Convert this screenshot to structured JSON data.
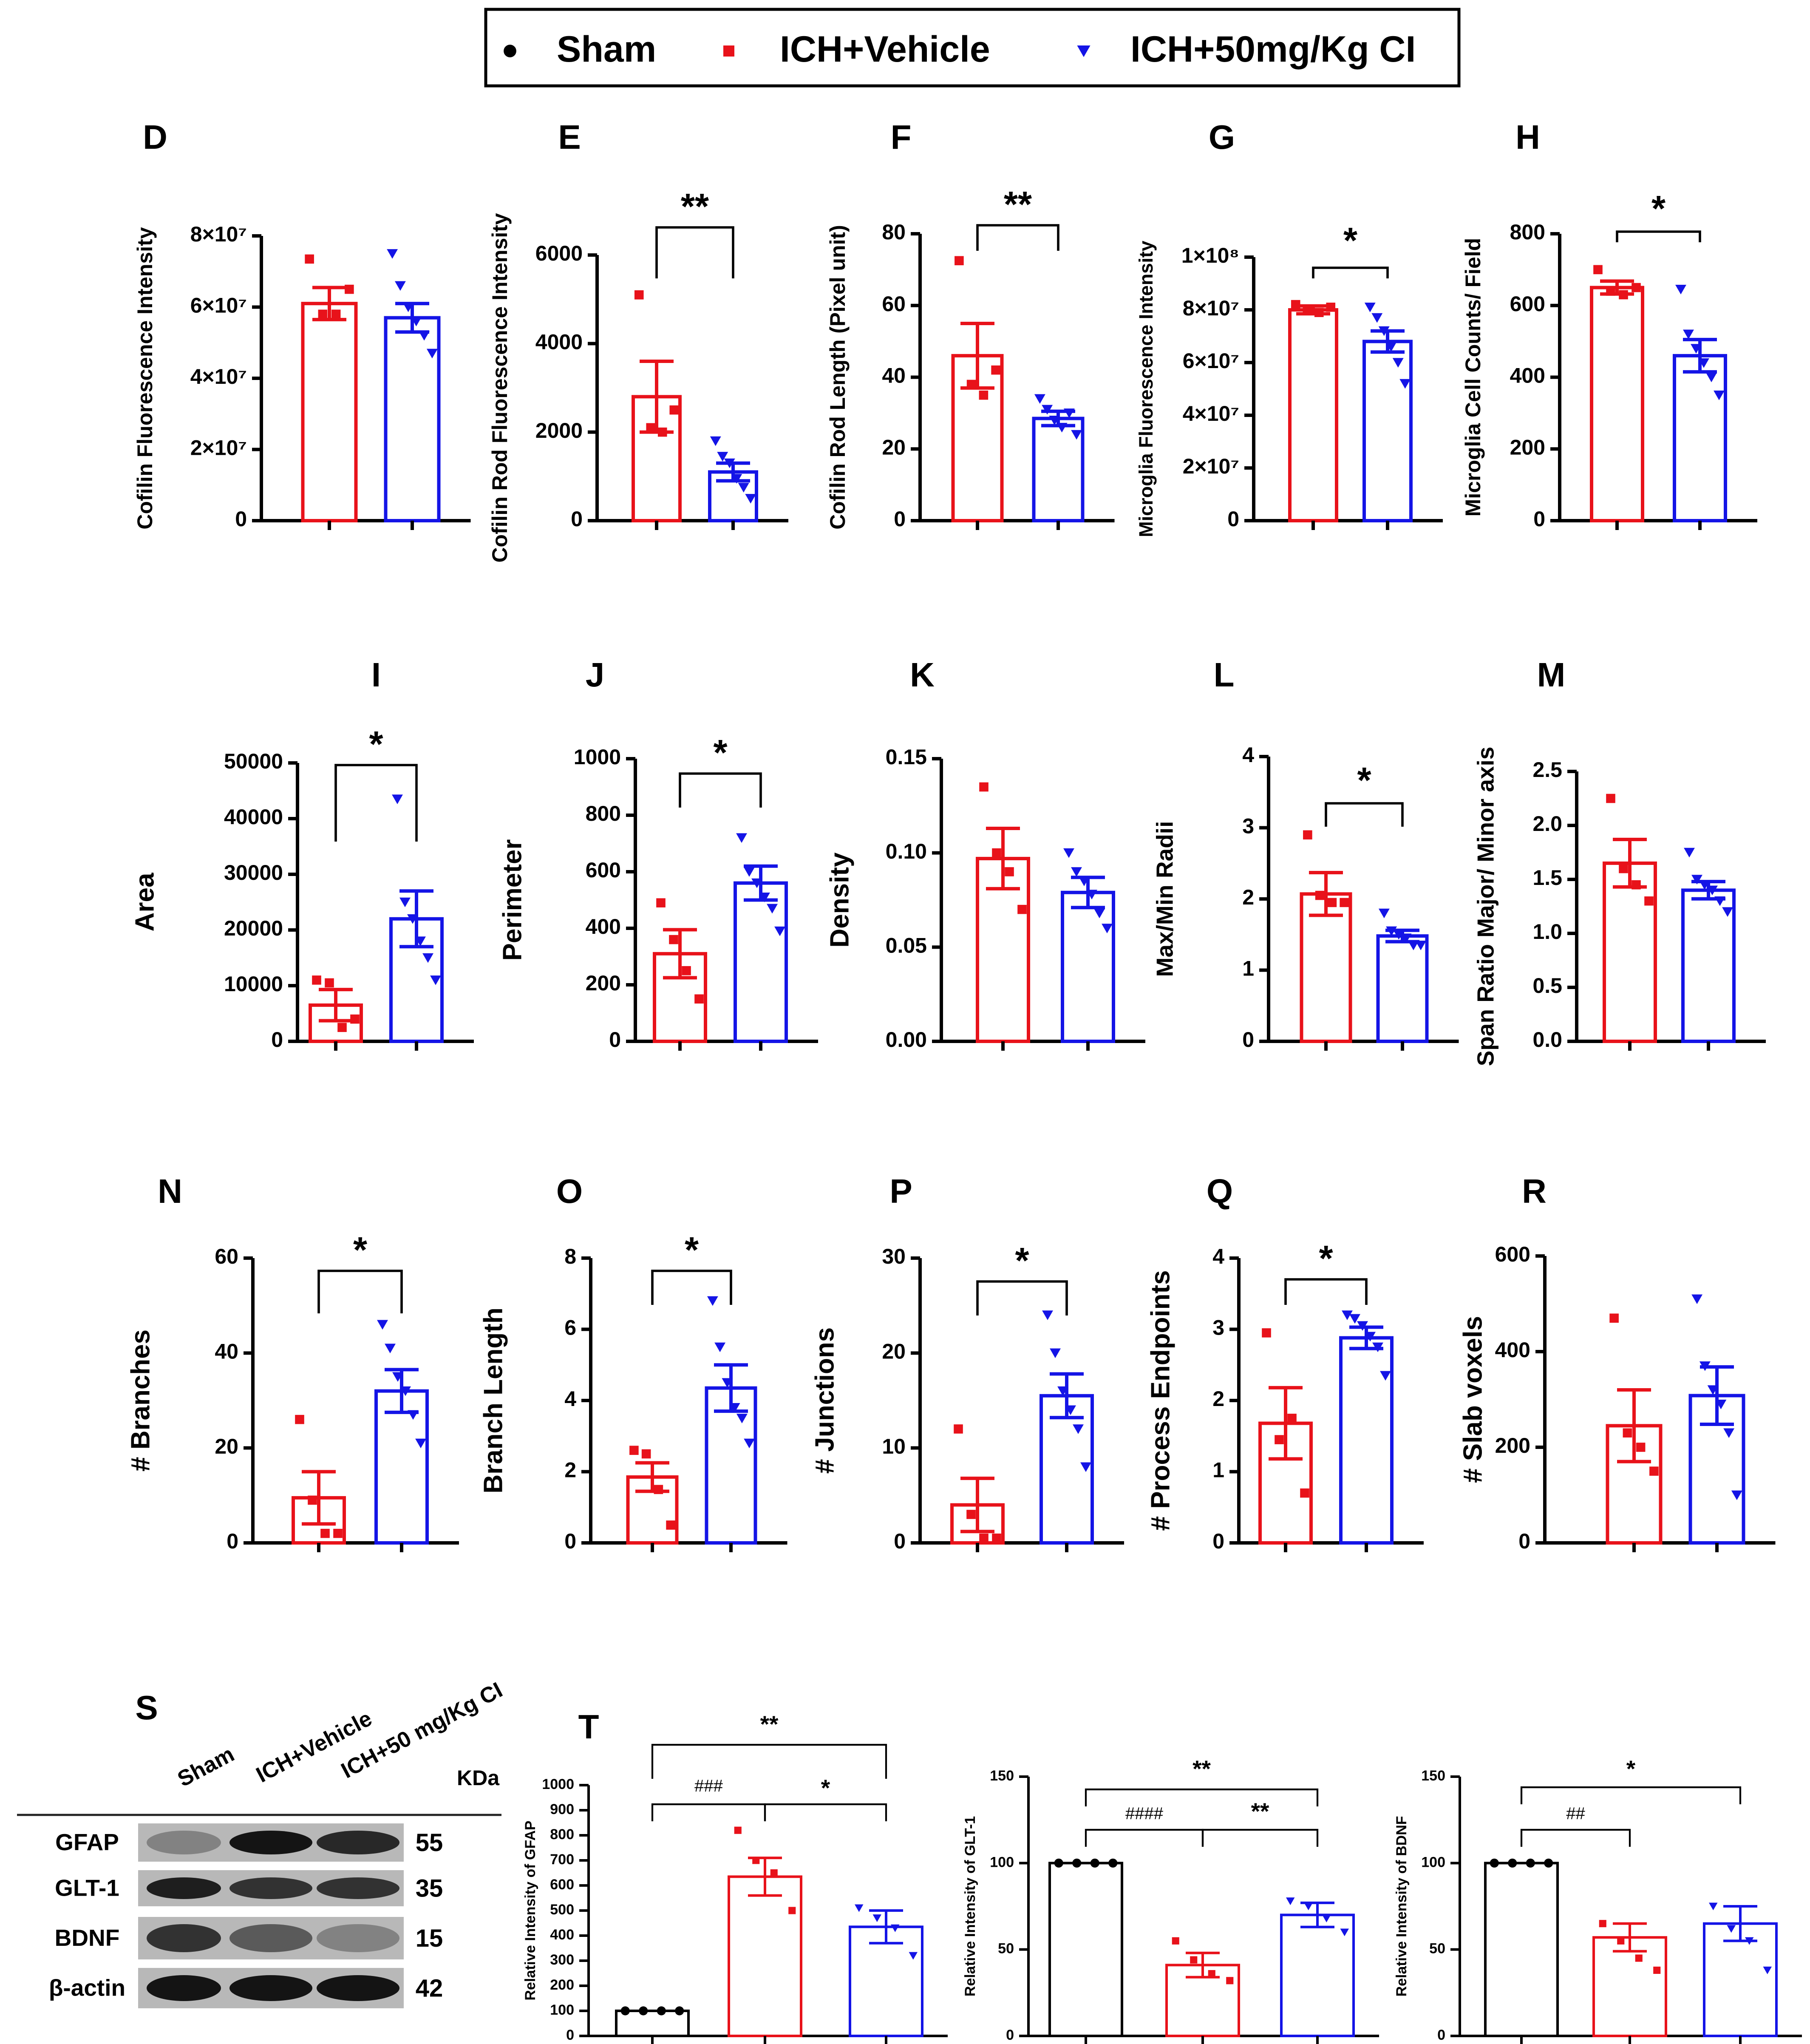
{
  "legend": {
    "items": [
      {
        "label": "Sham",
        "color": "#000000",
        "shape": "circle"
      },
      {
        "label": "ICH+Vehicle",
        "color": "#e8121a",
        "shape": "square"
      },
      {
        "label": "ICH+50mg/Kg CI",
        "color": "#1414e6",
        "shape": "triangle"
      }
    ]
  },
  "blot": {
    "panel_letter": "S",
    "lanes": [
      "Sham",
      "ICH+Vehicle",
      "ICH+50 mg/Kg CI"
    ],
    "kda_header": "KDa",
    "bands": [
      {
        "name": "GFAP",
        "kda": "55"
      },
      {
        "name": "GLT-1",
        "kda": "35"
      },
      {
        "name": "BDNF",
        "kda": "15"
      },
      {
        "name": "β-actin",
        "kda": "42"
      }
    ]
  },
  "chart_data": [
    {
      "panel": "D",
      "type": "bar",
      "ylabel": "Cofilin Fluorescence Intensity",
      "categories": [
        "ICH+Vehicle",
        "ICH+50mg/Kg CI"
      ],
      "values": [
        61000000,
        57000000
      ],
      "sem": [
        4500000,
        4000000
      ],
      "ylim": [
        0,
        80000000
      ],
      "yticks": [
        "0",
        "2×10⁷",
        "4×10⁷",
        "6×10⁷",
        "8×10⁷"
      ],
      "points": [
        [
          73500000,
          58000000,
          58000000,
          65000000
        ],
        [
          75000000,
          66000000,
          60000000,
          56000000,
          52000000,
          47000000
        ]
      ]
    },
    {
      "panel": "E",
      "type": "bar",
      "ylabel": "Cofilin Rod Fluorescence Intensity",
      "categories": [
        "ICH+Vehicle",
        "ICH+50mg/Kg CI"
      ],
      "values": [
        2800,
        1100
      ],
      "sem": [
        800,
        200
      ],
      "ylim": [
        0,
        6000
      ],
      "yticks": [
        "0",
        "2000",
        "4000",
        "6000"
      ],
      "points": [
        [
          5100,
          2100,
          2000,
          2500
        ],
        [
          1800,
          1450,
          1300,
          950,
          750,
          500
        ]
      ],
      "significance": [
        {
          "label": "**"
        }
      ]
    },
    {
      "panel": "F",
      "type": "bar",
      "ylabel": "Cofilin Rod Length (Pixel unit)",
      "categories": [
        "ICH+Vehicle",
        "ICH+50mg/Kg CI"
      ],
      "values": [
        46,
        28.5
      ],
      "sem": [
        9,
        2
      ],
      "ylim": [
        0,
        80
      ],
      "yticks": [
        "0",
        "20",
        "40",
        "60",
        "80"
      ],
      "points": [
        [
          72.5,
          38,
          35,
          42
        ],
        [
          34,
          31,
          28,
          26,
          30,
          24
        ]
      ],
      "significance": [
        {
          "label": "**"
        }
      ]
    },
    {
      "panel": "G",
      "type": "bar",
      "ylabel": "Microglia Fluorescence Intensity",
      "categories": [
        "ICH+Vehicle",
        "ICH+50mg/Kg CI"
      ],
      "values": [
        80000000,
        68000000
      ],
      "sem": [
        1500000,
        4000000
      ],
      "ylim": [
        0,
        100000000
      ],
      "yticks": [
        "0",
        "2×10⁷",
        "4×10⁷",
        "6×10⁷",
        "8×10⁷",
        "1×10⁸"
      ],
      "points": [
        [
          82000000,
          80000000,
          79000000,
          81000000
        ],
        [
          81000000,
          77000000,
          72000000,
          66000000,
          60000000,
          52000000
        ]
      ],
      "significance": [
        {
          "label": "*"
        }
      ]
    },
    {
      "panel": "H",
      "type": "bar",
      "ylabel": "Microglia Cell Counts/ Field",
      "categories": [
        "ICH+Vehicle",
        "ICH+50mg/Kg CI"
      ],
      "values": [
        650,
        460
      ],
      "sem": [
        18,
        45
      ],
      "ylim": [
        0,
        800
      ],
      "yticks": [
        "0",
        "200",
        "400",
        "600",
        "800"
      ],
      "points": [
        [
          700,
          640,
          630,
          650
        ],
        [
          645,
          520,
          480,
          440,
          400,
          350
        ]
      ],
      "significance": [
        {
          "label": "*"
        }
      ]
    },
    {
      "panel": "I",
      "type": "bar",
      "ylabel": "Area",
      "categories": [
        "ICH+Vehicle",
        "ICH+50mg/Kg CI"
      ],
      "values": [
        6500,
        22000
      ],
      "sem": [
        2800,
        5000
      ],
      "ylim": [
        0,
        50000
      ],
      "yticks": [
        "0",
        "10000",
        "20000",
        "30000",
        "40000",
        "50000"
      ],
      "points": [
        [
          11000,
          10500,
          2500,
          4000
        ],
        [
          43500,
          25000,
          22000,
          18000,
          15000,
          11000
        ]
      ],
      "significance": [
        {
          "label": "*"
        }
      ]
    },
    {
      "panel": "J",
      "type": "bar",
      "ylabel": "Perimeter",
      "categories": [
        "ICH+Vehicle",
        "ICH+50mg/Kg CI"
      ],
      "values": [
        310,
        560
      ],
      "sem": [
        85,
        60
      ],
      "ylim": [
        0,
        1000
      ],
      "yticks": [
        "0",
        "200",
        "400",
        "600",
        "800",
        "1000"
      ],
      "points": [
        [
          490,
          360,
          250,
          150
        ],
        [
          720,
          600,
          560,
          510,
          470,
          390
        ]
      ],
      "significance": [
        {
          "label": "*"
        }
      ]
    },
    {
      "panel": "K",
      "type": "bar",
      "ylabel": "Density",
      "categories": [
        "ICH+Vehicle",
        "ICH+50mg/Kg CI"
      ],
      "values": [
        0.097,
        0.079
      ],
      "sem": [
        0.016,
        0.008
      ],
      "ylim": [
        0,
        0.15
      ],
      "yticks": [
        "0.00",
        "0.05",
        "0.10",
        "0.15"
      ],
      "points": [
        [
          0.135,
          0.1,
          0.09,
          0.07
        ],
        [
          0.1,
          0.09,
          0.085,
          0.078,
          0.068,
          0.06
        ]
      ]
    },
    {
      "panel": "L",
      "type": "bar",
      "ylabel": "Max/Min Radii",
      "categories": [
        "ICH+Vehicle",
        "ICH+50mg/Kg CI"
      ],
      "values": [
        2.07,
        1.48
      ],
      "sem": [
        0.3,
        0.08
      ],
      "ylim": [
        0,
        4
      ],
      "yticks": [
        "0",
        "1",
        "2",
        "3",
        "4"
      ],
      "points": [
        [
          2.9,
          2.05,
          1.95,
          1.95
        ],
        [
          1.8,
          1.55,
          1.5,
          1.45,
          1.35,
          1.35
        ]
      ],
      "significance": [
        {
          "label": "*"
        }
      ]
    },
    {
      "panel": "M",
      "type": "bar",
      "ylabel": "Span Ratio Major/ Minor axis",
      "categories": [
        "ICH+Vehicle",
        "ICH+50mg/Kg CI"
      ],
      "values": [
        1.65,
        1.4
      ],
      "sem": [
        0.22,
        0.08
      ],
      "ylim": [
        0,
        2.5
      ],
      "yticks": [
        "0.0",
        "0.5",
        "1.0",
        "1.5",
        "2.0",
        "2.5"
      ],
      "points": [
        [
          2.25,
          1.6,
          1.45,
          1.3
        ],
        [
          1.75,
          1.5,
          1.45,
          1.4,
          1.3,
          1.2
        ]
      ]
    },
    {
      "panel": "N",
      "type": "bar",
      "ylabel": "# Branches",
      "categories": [
        "ICH+Vehicle",
        "ICH+50mg/Kg CI"
      ],
      "values": [
        9.5,
        32
      ],
      "sem": [
        5.5,
        4.5
      ],
      "ylim": [
        0,
        60
      ],
      "yticks": [
        "0",
        "20",
        "40",
        "60"
      ],
      "points": [
        [
          26,
          9,
          2,
          2
        ],
        [
          46,
          41,
          35,
          32,
          27,
          21
        ]
      ],
      "significance": [
        {
          "label": "*"
        }
      ]
    },
    {
      "panel": "O",
      "type": "bar",
      "ylabel": "Branch Length",
      "categories": [
        "ICH+Vehicle",
        "ICH+50mg/Kg CI"
      ],
      "values": [
        1.85,
        4.35
      ],
      "sem": [
        0.4,
        0.65
      ],
      "ylim": [
        0,
        8
      ],
      "yticks": [
        "0",
        "2",
        "4",
        "6",
        "8"
      ],
      "points": [
        [
          2.6,
          2.5,
          1.5,
          0.5
        ],
        [
          6.8,
          5.5,
          4.5,
          3.8,
          3.5,
          2.8
        ]
      ],
      "significance": [
        {
          "label": "*"
        }
      ]
    },
    {
      "panel": "P",
      "type": "bar",
      "ylabel": "# Junctions",
      "categories": [
        "ICH+Vehicle",
        "ICH+50mg/Kg CI"
      ],
      "values": [
        4,
        15.5
      ],
      "sem": [
        2.8,
        2.3
      ],
      "ylim": [
        0,
        30
      ],
      "yticks": [
        "0",
        "10",
        "20",
        "30"
      ],
      "points": [
        [
          12,
          3,
          0.5,
          0.5
        ],
        [
          24,
          20,
          16,
          14,
          12,
          8
        ]
      ],
      "significance": [
        {
          "label": "*"
        }
      ]
    },
    {
      "panel": "Q",
      "type": "bar",
      "ylabel": "# Process Endpoints",
      "categories": [
        "ICH+Vehicle",
        "ICH+50mg/Kg CI"
      ],
      "values": [
        1.68,
        2.88
      ],
      "sem": [
        0.5,
        0.15
      ],
      "ylim": [
        0,
        4
      ],
      "yticks": [
        "0",
        "1",
        "2",
        "3",
        "4"
      ],
      "points": [
        [
          2.95,
          1.45,
          1.75,
          0.7
        ],
        [
          3.2,
          3.15,
          3.05,
          2.9,
          2.75,
          2.35
        ]
      ],
      "significance": [
        {
          "label": "*"
        }
      ]
    },
    {
      "panel": "R",
      "type": "bar",
      "ylabel": "# Slab voxels",
      "categories": [
        "ICH+Vehicle",
        "ICH+50mg/Kg CI"
      ],
      "values": [
        245,
        308
      ],
      "sem": [
        75,
        60
      ],
      "ylim": [
        0,
        600
      ],
      "yticks": [
        "0",
        "200",
        "400",
        "600"
      ],
      "points": [
        [
          470,
          230,
          200,
          150
        ],
        [
          510,
          370,
          320,
          290,
          230,
          100
        ]
      ]
    },
    {
      "panel": "T",
      "type": "bar",
      "ylabel": "Relative Intensity of GFAP",
      "categories": [
        "Sham",
        "ICH+Vehicle",
        "ICH+50mg/Kg CI"
      ],
      "values": [
        100,
        635,
        435
      ],
      "sem": [
        0,
        75,
        65
      ],
      "ylim": [
        0,
        1000
      ],
      "yticks": [
        "0",
        "100",
        "200",
        "300",
        "400",
        "500",
        "600",
        "700",
        "800",
        "900",
        "1000"
      ],
      "points": [
        [
          100,
          100,
          100,
          100
        ],
        [
          820,
          700,
          650,
          500
        ],
        [
          510,
          470,
          430,
          320
        ]
      ],
      "significance": [
        {
          "label": "**"
        },
        {
          "label": "###"
        },
        {
          "label": "*"
        }
      ]
    },
    {
      "panel": "T",
      "type": "bar",
      "ylabel": "Relative Intensity of GLT-1",
      "categories": [
        "Sham",
        "ICH+Vehicle",
        "ICH+50mg/Kg CI"
      ],
      "values": [
        100,
        41,
        70
      ],
      "sem": [
        0,
        7,
        7
      ],
      "ylim": [
        0,
        150
      ],
      "yticks": [
        "0",
        "50",
        "100",
        "150"
      ],
      "points": [
        [
          100,
          100,
          100,
          100
        ],
        [
          55,
          44,
          36,
          32
        ],
        [
          78,
          75,
          68,
          60
        ]
      ],
      "significance": [
        {
          "label": "**"
        },
        {
          "label": "####"
        },
        {
          "label": "**"
        }
      ]
    },
    {
      "panel": "T",
      "type": "bar",
      "ylabel": "Relative Intensity of BDNF",
      "categories": [
        "Sham",
        "ICH+Vehicle",
        "ICH+50mg/Kg CI"
      ],
      "values": [
        100,
        57,
        65
      ],
      "sem": [
        0,
        8,
        10
      ],
      "ylim": [
        0,
        150
      ],
      "yticks": [
        "0",
        "50",
        "100",
        "150"
      ],
      "points": [
        [
          100,
          100,
          100,
          100
        ],
        [
          65,
          55,
          45,
          38
        ],
        [
          75,
          62,
          55,
          38
        ]
      ],
      "significance": [
        {
          "label": "*"
        },
        {
          "label": "##"
        }
      ]
    }
  ]
}
